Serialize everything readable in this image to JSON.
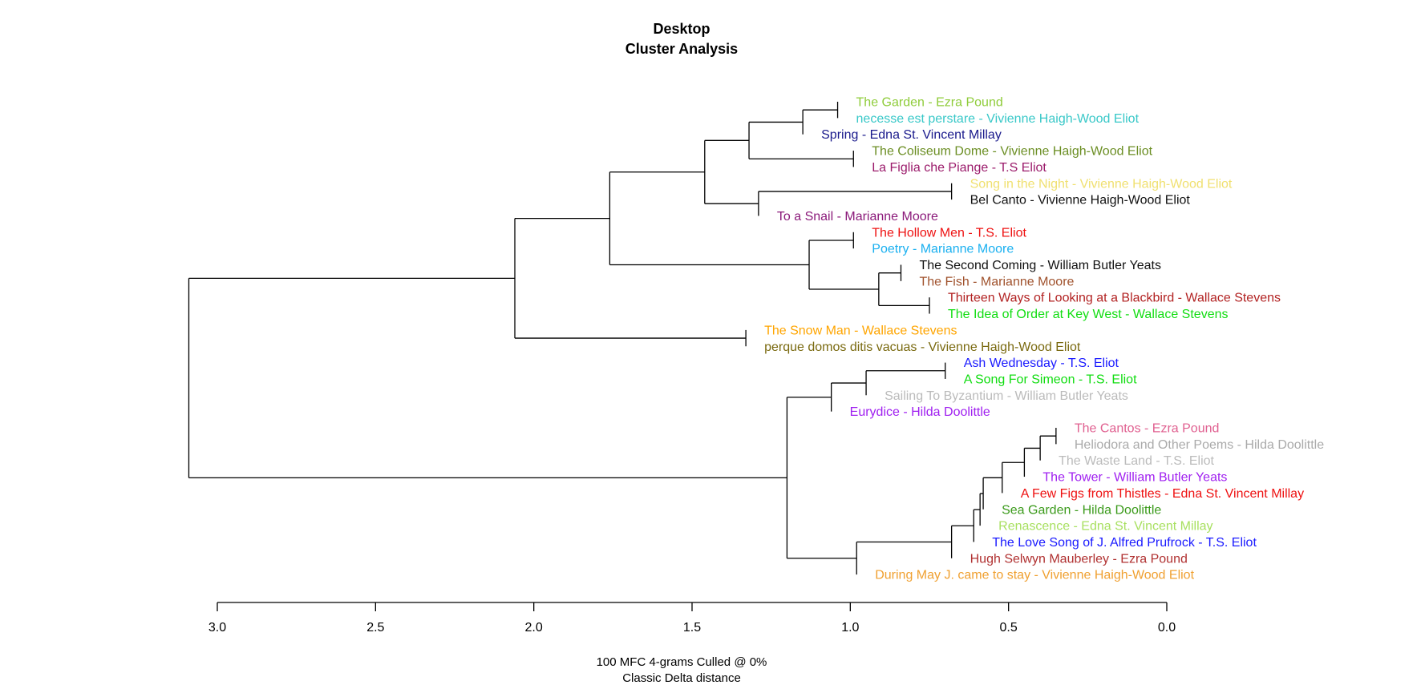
{
  "chart_data": {
    "type": "dendrogram",
    "title": [
      "Desktop",
      "Cluster Analysis"
    ],
    "caption": [
      "100 MFC 4-grams Culled @ 0%",
      "Classic Delta distance"
    ],
    "x_axis": {
      "xlim": [
        3.0,
        0.0
      ],
      "ticks": [
        "3.0",
        "2.5",
        "2.0",
        "1.5",
        "1.0",
        "0.5",
        "0.0"
      ],
      "reversed": true
    },
    "leaves": [
      {
        "label": "The Garden - Ezra Pound",
        "color": "#8fcc3a"
      },
      {
        "label": "necesse est perstare - Vivienne Haigh-Wood Eliot",
        "color": "#38c8c8"
      },
      {
        "label": "Spring - Edna St. Vincent Millay",
        "color": "#1a1a8c"
      },
      {
        "label": "The Coliseum Dome - Vivienne Haigh-Wood Eliot",
        "color": "#6b8e23"
      },
      {
        "label": "La Figlia che Piange - T.S Eliot",
        "color": "#9b1b6b"
      },
      {
        "label": "Song in the Night - Vivienne Haigh-Wood Eliot",
        "color": "#f0e070"
      },
      {
        "label": "Bel Canto - Vivienne Haigh-Wood Eliot",
        "color": "#111111"
      },
      {
        "label": "To a Snail - Marianne Moore",
        "color": "#8b1a7a"
      },
      {
        "label": "The Hollow Men - T.S. Eliot",
        "color": "#ee1111"
      },
      {
        "label": "Poetry - Marianne Moore",
        "color": "#1ab0f0"
      },
      {
        "label": "The Second Coming - William Butler Yeats",
        "color": "#111111"
      },
      {
        "label": "The Fish - Marianne Moore",
        "color": "#a0522d"
      },
      {
        "label": "Thirteen Ways of Looking at a Blackbird - Wallace Stevens",
        "color": "#b22222"
      },
      {
        "label": "The Idea of Order at Key West - Wallace Stevens",
        "color": "#11dd11"
      },
      {
        "label": "The Snow Man - Wallace Stevens",
        "color": "#ffa500"
      },
      {
        "label": "perque domos ditis vacuas - Vivienne Haigh-Wood Eliot",
        "color": "#7a6a10"
      },
      {
        "label": "Ash Wednesday - T.S. Eliot",
        "color": "#1a1aff"
      },
      {
        "label": "A Song For Simeon - T.S. Eliot",
        "color": "#11dd11"
      },
      {
        "label": "Sailing To Byzantium - William Butler Yeats",
        "color": "#bbbbbb"
      },
      {
        "label": "Eurydice - Hilda Doolittle",
        "color": "#a020f0"
      },
      {
        "label": "The Cantos - Ezra Pound",
        "color": "#e06090"
      },
      {
        "label": "Heliodora and Other Poems - Hilda Doolittle",
        "color": "#aaaaaa"
      },
      {
        "label": "The Waste Land - T.S. Eliot",
        "color": "#bbbbbb"
      },
      {
        "label": "The Tower - William Butler Yeats",
        "color": "#a020f0"
      },
      {
        "label": "A Few Figs from Thistles - Edna St. Vincent Millay",
        "color": "#ee1111"
      },
      {
        "label": "Sea Garden - Hilda Doolittle",
        "color": "#3a9a1a"
      },
      {
        "label": "Renascence - Edna St. Vincent Millay",
        "color": "#a8e060"
      },
      {
        "label": "The Love Song of J. Alfred Prufrock - T.S. Eliot",
        "color": "#1a1aff"
      },
      {
        "label": "Hugh Selwyn Mauberley - Ezra Pound",
        "color": "#b03030"
      },
      {
        "label": "During May  J. came to stay - Vivienne Haigh-Wood Eliot",
        "color": "#f0a030"
      }
    ],
    "merges": [
      {
        "height": 1.04,
        "children": [
          "L0",
          "L1"
        ]
      },
      {
        "height": 1.15,
        "children": [
          "M0",
          "L2"
        ]
      },
      {
        "height": 0.99,
        "children": [
          "L3",
          "L4"
        ]
      },
      {
        "height": 1.32,
        "children": [
          "M1",
          "M2"
        ]
      },
      {
        "height": 0.68,
        "children": [
          "L5",
          "L6"
        ]
      },
      {
        "height": 1.29,
        "children": [
          "M4",
          "L7"
        ]
      },
      {
        "height": 1.46,
        "children": [
          "M3",
          "M5"
        ]
      },
      {
        "height": 0.99,
        "children": [
          "L8",
          "L9"
        ]
      },
      {
        "height": 0.84,
        "children": [
          "L10",
          "L11"
        ]
      },
      {
        "height": 0.75,
        "children": [
          "L12",
          "L13"
        ]
      },
      {
        "height": 0.91,
        "children": [
          "M8",
          "M9"
        ]
      },
      {
        "height": 1.13,
        "children": [
          "M7",
          "M10"
        ]
      },
      {
        "height": 1.76,
        "children": [
          "M6",
          "M11"
        ]
      },
      {
        "height": 1.33,
        "children": [
          "L14",
          "L15"
        ]
      },
      {
        "height": 2.06,
        "children": [
          "M12",
          "M13"
        ]
      },
      {
        "height": 0.7,
        "children": [
          "L16",
          "L17"
        ]
      },
      {
        "height": 0.95,
        "children": [
          "M15",
          "L18"
        ]
      },
      {
        "height": 1.06,
        "children": [
          "M16",
          "L19"
        ]
      },
      {
        "height": 0.35,
        "children": [
          "L20",
          "L21"
        ]
      },
      {
        "height": 0.4,
        "children": [
          "M18",
          "L22"
        ]
      },
      {
        "height": 0.45,
        "children": [
          "M19",
          "L23"
        ]
      },
      {
        "height": 0.52,
        "children": [
          "M20",
          "L24"
        ]
      },
      {
        "height": 0.58,
        "children": [
          "M21",
          "L25"
        ]
      },
      {
        "height": 0.59,
        "children": [
          "M22",
          "L26"
        ]
      },
      {
        "height": 0.61,
        "children": [
          "M23",
          "L27"
        ]
      },
      {
        "height": 0.68,
        "children": [
          "M24",
          "L28"
        ]
      },
      {
        "height": 0.98,
        "children": [
          "M25",
          "L29"
        ]
      },
      {
        "height": 1.2,
        "children": [
          "M17",
          "M26"
        ]
      },
      {
        "height": 3.09,
        "children": [
          "M14",
          "M27"
        ]
      }
    ]
  }
}
